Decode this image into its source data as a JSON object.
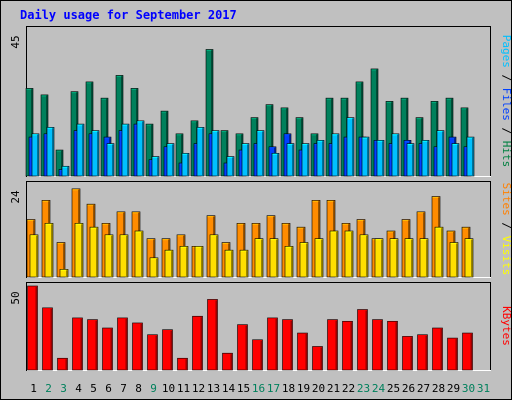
{
  "chart_data": {
    "type": "bar",
    "title": "Daily usage for September 2017",
    "categories": [
      "1",
      "2",
      "3",
      "4",
      "5",
      "6",
      "7",
      "8",
      "9",
      "10",
      "11",
      "12",
      "13",
      "14",
      "15",
      "16",
      "17",
      "18",
      "19",
      "20",
      "21",
      "22",
      "23",
      "24",
      "25",
      "26",
      "27",
      "28",
      "29",
      "30",
      "31"
    ],
    "weekend_days": [
      "2",
      "3",
      "9",
      "16",
      "17",
      "23",
      "24",
      "30",
      "31"
    ],
    "panels": [
      {
        "name": "hits-files-pages",
        "ymax_label": "45",
        "ymax": 45,
        "side_label": [
          "Pages",
          "Files",
          "Hits"
        ],
        "side_colors": [
          "#00C0FF",
          "#0040FF",
          "#008040"
        ],
        "series": [
          {
            "name": "Hits",
            "color": "#00805C",
            "values": [
              27,
              25,
              8,
              26,
              29,
              24,
              31,
              27,
              16,
              20,
              13,
              17,
              39,
              14,
              13,
              18,
              22,
              21,
              18,
              13,
              24,
              24,
              29,
              33,
              23,
              24,
              18,
              23,
              24,
              21,
              0
            ]
          },
          {
            "name": "Files",
            "color": "#0040FF",
            "values": [
              12,
              13,
              2,
              14,
              13,
              12,
              14,
              16,
              5,
              9,
              4,
              10,
              13,
              4,
              8,
              10,
              9,
              13,
              8,
              10,
              10,
              12,
              12,
              11,
              10,
              11,
              10,
              9,
              12,
              9,
              0
            ]
          },
          {
            "name": "Pages",
            "color": "#00C0FF",
            "values": [
              13,
              15,
              3,
              16,
              14,
              10,
              16,
              17,
              6,
              10,
              7,
              15,
              14,
              6,
              10,
              14,
              7,
              10,
              10,
              11,
              13,
              18,
              12,
              11,
              13,
              10,
              11,
              14,
              10,
              12,
              0
            ]
          }
        ]
      },
      {
        "name": "sites-visits",
        "ymax_label": "24",
        "ymax": 24,
        "side_label": [
          "Sites",
          "Visits"
        ],
        "side_colors": [
          "#FF8000",
          "#FFFF00"
        ],
        "series": [
          {
            "name": "Visits",
            "color": "#FF8C00",
            "values": [
              15,
              20,
              9,
              23,
              19,
              14,
              17,
              17,
              10,
              10,
              11,
              8,
              16,
              9,
              14,
              14,
              16,
              14,
              13,
              20,
              20,
              14,
              15,
              10,
              12,
              15,
              17,
              21,
              12,
              13,
              0
            ]
          },
          {
            "name": "Sites",
            "color": "#FFE000",
            "values": [
              11,
              14,
              2,
              14,
              13,
              11,
              11,
              12,
              5,
              7,
              8,
              8,
              11,
              7,
              7,
              10,
              10,
              8,
              9,
              10,
              12,
              12,
              11,
              10,
              10,
              10,
              10,
              13,
              9,
              10,
              0
            ]
          }
        ]
      },
      {
        "name": "kbytes",
        "ymax_label": "50",
        "ymax": 50,
        "side_label": [
          "KBytes"
        ],
        "side_colors": [
          "#FF0000"
        ],
        "series": [
          {
            "name": "KBytes",
            "color": "#FF0000",
            "values": [
              50,
              37,
              7,
              31,
              30,
              25,
              31,
              28,
              21,
              24,
              7,
              32,
              42,
              10,
              27,
              18,
              31,
              30,
              22,
              14,
              30,
              29,
              36,
              30,
              29,
              20,
              21,
              25,
              19,
              22,
              0
            ]
          }
        ]
      }
    ]
  }
}
